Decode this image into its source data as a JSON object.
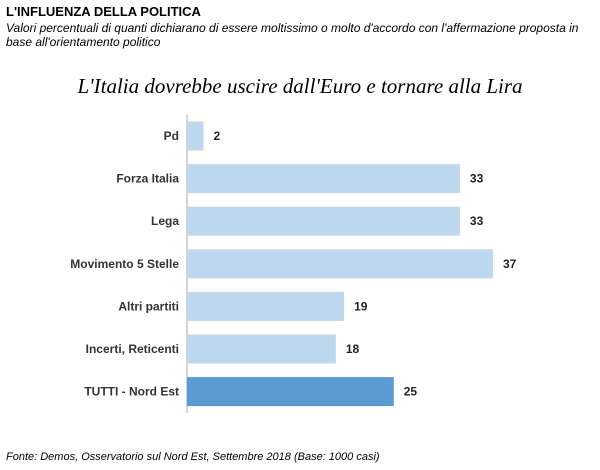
{
  "header": {
    "title": "L'INFLUENZA DELLA POLITICA",
    "subtitle": "Valori percentuali di quanti dichiarano di essere moltissimo o molto d'accordo con l'affermazione proposta in base all'orientamento politico"
  },
  "source": "Fonte: Demos, Osservatorio sul Nord Est, Settembre  2018 (Base: 1000 casi)",
  "colors": {
    "bar": "#bdd7ee",
    "highlight_bar": "#5b9bd5",
    "axis": "#aaaaaa"
  },
  "chart_data": {
    "type": "bar",
    "orientation": "horizontal",
    "title": "L'Italia  dovrebbe  uscire  dall'Euro  e  tornare  alla  Lira",
    "categories": [
      "Pd",
      "Forza Italia",
      "Lega",
      "Movimento 5 Stelle",
      "Altri partiti",
      "Incerti, Reticenti",
      "TUTTI - Nord Est"
    ],
    "values": [
      2,
      33,
      33,
      37,
      19,
      18,
      25
    ],
    "highlight_index": 6,
    "xlim": [
      0,
      37
    ],
    "grid": false,
    "legend": "none"
  }
}
